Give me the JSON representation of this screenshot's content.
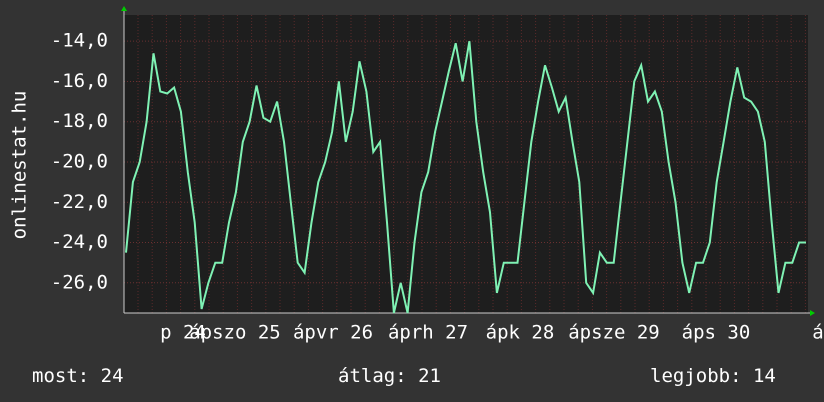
{
  "chart_data": {
    "type": "line",
    "y_label": "onlinestat.hu",
    "x_labels": [
      "p 24",
      "ápszo 25",
      "ápvr 26",
      "áprh 27",
      "ápk 28",
      "ápsze 29",
      "áps 30",
      "á"
    ],
    "series": [
      {
        "color": "#7ff2b4",
        "values": [
          -24.5,
          -21,
          -20,
          -18,
          -14.6,
          -16.5,
          -16.6,
          -16.3,
          -17.5,
          -20.5,
          -23,
          -27.3,
          -26,
          -25,
          -25,
          -23,
          -21.5,
          -19,
          -18,
          -16.2,
          -17.8,
          -18,
          -17,
          -19,
          -22,
          -25,
          -25.5,
          -23,
          -21,
          -20,
          -18.5,
          -16,
          -19,
          -17.5,
          -15,
          -16.5,
          -19.5,
          -19,
          -23,
          -27.5,
          -26,
          -27.5,
          -24,
          -21.5,
          -20.5,
          -18.5,
          -17,
          -15.5,
          -14.1,
          -16,
          -14,
          -18,
          -20.5,
          -22.5,
          -26.5,
          -25,
          -25,
          -25,
          -22,
          -19,
          -17,
          -15.2,
          -16.3,
          -17.5,
          -16.8,
          -19,
          -21,
          -26,
          -26.5,
          -24.5,
          -25,
          -25,
          -22,
          -19,
          -16,
          -15.2,
          -17,
          -16.5,
          -17.5,
          -20,
          -22,
          -25,
          -26.5,
          -25,
          -25,
          -24,
          -21,
          -19,
          -17,
          -15.3,
          -16.8,
          -17,
          -17.5,
          -19,
          -23,
          -26.5,
          -25,
          -25,
          -24,
          -24
        ]
      }
    ],
    "ylim": [
      -27.5,
      -12.7
    ],
    "yticks": [
      {
        "value": -26,
        "label": "-26,0"
      },
      {
        "value": -24,
        "label": "-24,0"
      },
      {
        "value": -22,
        "label": "-22,0"
      },
      {
        "value": -20,
        "label": "-20,0"
      },
      {
        "value": -18,
        "label": "-18,0"
      },
      {
        "value": -16,
        "label": "-16,0"
      },
      {
        "value": -14,
        "label": "-14,0"
      }
    ],
    "grid": true,
    "stats": [
      "most: 24",
      "átlag: 21",
      "legjobb: 14"
    ]
  }
}
